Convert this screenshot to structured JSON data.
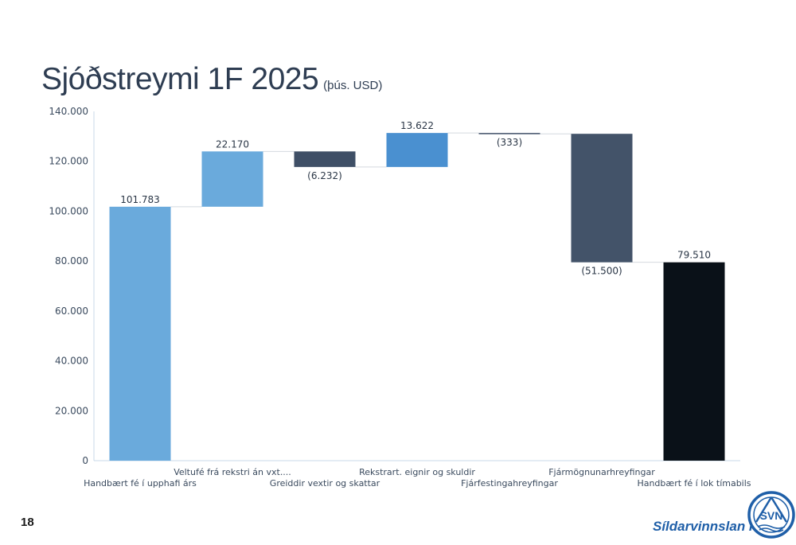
{
  "slide": {
    "title": "Sjóðstreymi 1F 2025",
    "subtitle": "(þús. USD)",
    "page_number": "18"
  },
  "logo": {
    "company_name": "Síldarvinnslan hf",
    "emblem_text": "SVN",
    "color": "#1f5fa8"
  },
  "chart_data": {
    "type": "bar",
    "subtype": "waterfall",
    "categories": [
      "Handbært fé í upphafi árs",
      "Veltufé frá rekstri án vxt....",
      "Greiddir vextir og skattar",
      "Rekstrart. eignir og skuldir",
      "Fjárfestingahreyfingar",
      "Fjármögnunarhreyfingar",
      "Handbært fé í lok tímabils"
    ],
    "values": [
      101783,
      22170,
      -6232,
      13622,
      -333,
      -51500,
      79510
    ],
    "kinds": [
      "total",
      "change",
      "change",
      "change",
      "change",
      "change",
      "total"
    ],
    "data_labels": [
      "101.783",
      "22.170",
      "(6.232)",
      "13.622",
      "(333)",
      "(51.500)",
      "79.510"
    ],
    "colors": [
      "#6aaadc",
      "#6aaadc",
      "#3f4f66",
      "#4a90d0",
      "#3f4f66",
      "#435369",
      "#0a1118"
    ],
    "ylim": [
      0,
      140000
    ],
    "yticks": [
      0,
      20000,
      40000,
      60000,
      80000,
      100000,
      120000,
      140000
    ],
    "ytick_labels": [
      "0",
      "20.000",
      "40.000",
      "60.000",
      "80.000",
      "100.000",
      "120.000",
      "140.000"
    ],
    "xlabel": "",
    "ylabel": "",
    "grid": false,
    "legend": "none"
  }
}
